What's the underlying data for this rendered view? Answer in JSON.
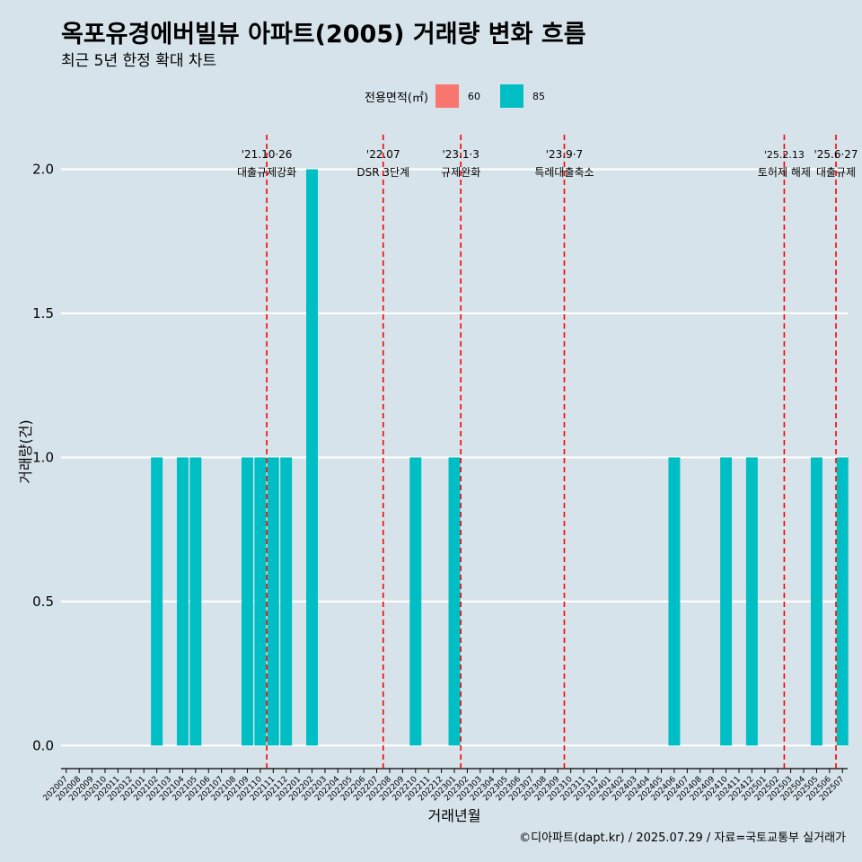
{
  "title": "옥포유경에버빌뷰 아파트(2005) 거래량 변화 흐름",
  "subtitle": "최근 5년 한정 확대 차트",
  "caption": "©디아파트(dapt.kr) / 2025.07.29 / 자료=국토교통부 실거래가",
  "legend": {
    "title": "전용면적(㎡)",
    "items": [
      {
        "label": "60",
        "color": "#f8766d"
      },
      {
        "label": "85",
        "color": "#00bfc4"
      }
    ]
  },
  "chart_data": {
    "type": "bar",
    "xlabel": "거래년월",
    "ylabel": "거래량(건)",
    "ylim": [
      -0.08,
      2.12
    ],
    "yticks": [
      "0.0",
      "0.5",
      "1.0",
      "1.5",
      "2.0"
    ],
    "grid": true,
    "legend_position": "top",
    "categories": [
      "202007",
      "202008",
      "202009",
      "202010",
      "202011",
      "202012",
      "202101",
      "202102",
      "202103",
      "202104",
      "202105",
      "202106",
      "202107",
      "202108",
      "202109",
      "202110",
      "202111",
      "202112",
      "202201",
      "202202",
      "202203",
      "202204",
      "202205",
      "202206",
      "202207",
      "202208",
      "202209",
      "202210",
      "202211",
      "202212",
      "202301",
      "202302",
      "202303",
      "202304",
      "202305",
      "202306",
      "202307",
      "202308",
      "202309",
      "202310",
      "202311",
      "202312",
      "202401",
      "202402",
      "202403",
      "202404",
      "202405",
      "202406",
      "202407",
      "202408",
      "202409",
      "202410",
      "202411",
      "202412",
      "202501",
      "202502",
      "202503",
      "202504",
      "202505",
      "202506",
      "202507"
    ],
    "series": [
      {
        "name": "60",
        "color": "#f8766d",
        "values": [
          0,
          0,
          0,
          0,
          0,
          0,
          0,
          0,
          0,
          0,
          0,
          0,
          0,
          0,
          0,
          0,
          0,
          0,
          0,
          0,
          0,
          0,
          0,
          0,
          0,
          0,
          0,
          0,
          0,
          0,
          0,
          0,
          0,
          0,
          0,
          0,
          0,
          0,
          0,
          0,
          0,
          0,
          0,
          0,
          0,
          0,
          0,
          0,
          0,
          0,
          0,
          0,
          0,
          0,
          0,
          0,
          0,
          0,
          0,
          0,
          0
        ]
      },
      {
        "name": "85",
        "color": "#00bfc4",
        "values": [
          0,
          0,
          0,
          0,
          0,
          0,
          0,
          1,
          0,
          1,
          1,
          0,
          0,
          0,
          1,
          1,
          1,
          1,
          0,
          2,
          0,
          0,
          0,
          0,
          0,
          0,
          0,
          1,
          0,
          0,
          1,
          0,
          0,
          0,
          0,
          0,
          0,
          0,
          0,
          0,
          0,
          0,
          0,
          0,
          0,
          0,
          0,
          1,
          0,
          0,
          0,
          1,
          0,
          1,
          0,
          0,
          0,
          0,
          1,
          0,
          1
        ]
      }
    ],
    "events": [
      {
        "date": "'21.10·26",
        "label": "대출규제강화",
        "x": 15.5
      },
      {
        "date": "'22.07",
        "label": "DSR 3단계",
        "x": 24.5
      },
      {
        "date": "'23.1·3",
        "label": "규제완화",
        "x": 30.5
      },
      {
        "date": "'23.9·7",
        "label": "특례대출축소",
        "x": 38.5
      },
      {
        "date": "'25.2.13",
        "label": "토허제 해제",
        "x": 55.5
      },
      {
        "date": "'25.6·27",
        "label": "대출규제",
        "x": 59.5
      }
    ],
    "event_color": "#ff0000"
  }
}
